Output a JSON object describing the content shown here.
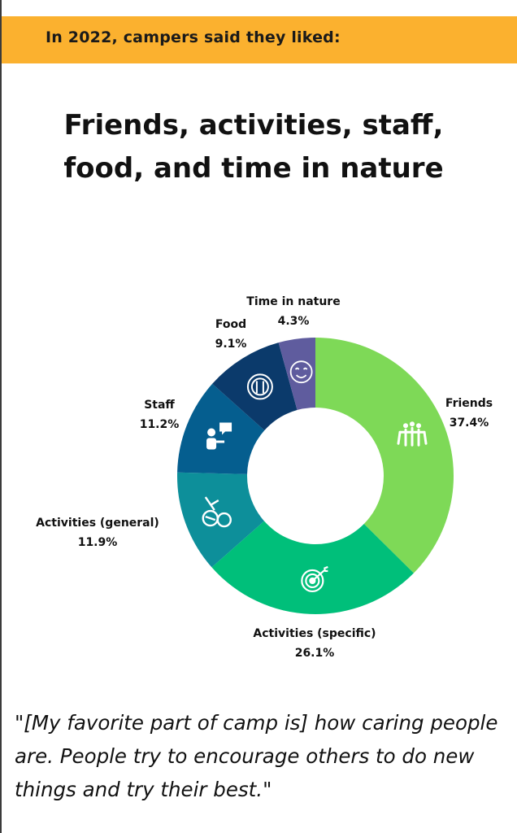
{
  "banner": {
    "text": "In 2022, campers said they liked:"
  },
  "headline": {
    "line1": "Friends, activities, staff,",
    "line2": "food, and time in nature"
  },
  "chart_data": {
    "type": "pie",
    "donut": true,
    "categories": [
      "Friends",
      "Activities (specific)",
      "Activities (general)",
      "Staff",
      "Food",
      "Time in nature"
    ],
    "values": [
      37.4,
      26.1,
      11.9,
      11.2,
      9.1,
      4.3
    ],
    "value_labels": [
      "37.4%",
      "26.1%",
      "11.9%",
      "11.2%",
      "9.1%",
      "4.3%"
    ],
    "colors": [
      "#7ed957",
      "#00bf7a",
      "#0d8f9a",
      "#055e8f",
      "#0b3a6b",
      "#5f5c9e"
    ],
    "icons": [
      "group-of-friends-icon",
      "target-icon",
      "sports-equipment-icon",
      "staff-chat-icon",
      "plate-utensils-icon",
      "smiling-face-icon"
    ]
  },
  "quote": {
    "text": "\"[My favorite part of camp is] how caring people are. People try to encourage others to do new things and try their best.\""
  }
}
